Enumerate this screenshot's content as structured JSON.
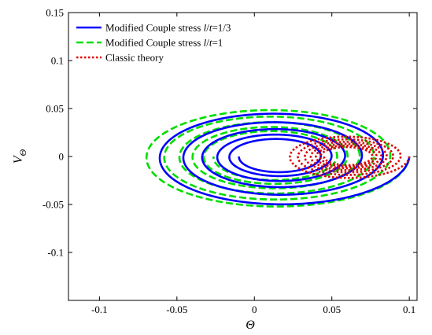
{
  "chart_data": {
    "type": "line",
    "xlabel": "Θ",
    "ylabel_main": "V",
    "ylabel_sub": "Θ",
    "xlim": [
      -0.12,
      0.105
    ],
    "ylim": [
      -0.15,
      0.15
    ],
    "xticks": [
      -0.1,
      -0.05,
      0,
      0.05,
      0.1
    ],
    "xtick_labels": [
      "-0.1",
      "-0.05",
      "0",
      "0.05",
      "0.1"
    ],
    "yticks": [
      -0.1,
      -0.05,
      0,
      0.05,
      0.1,
      0.15
    ],
    "ytick_labels": [
      "-0.1",
      "-0.05",
      "0",
      "0.05",
      "0.1",
      "0.15"
    ],
    "grid": false,
    "legend_position": "top-left",
    "series": [
      {
        "name": "Modified Couple stress l/t=1/3",
        "legend_parts": [
          {
            "text": "Modified Couple stress ",
            "italic": false
          },
          {
            "text": "l",
            "italic": true
          },
          {
            "text": "/",
            "italic": false
          },
          {
            "text": "t",
            "italic": true
          },
          {
            "text": "=1/3",
            "italic": false
          }
        ],
        "color": "#0000ff",
        "style": "solid",
        "spiral": {
          "x0": 0.1,
          "center_x": 0.015,
          "center_y": 0.0,
          "y_scale": 0.62,
          "turns": 5.5,
          "decay": 0.8
        }
      },
      {
        "name": "Modified Couple stress l/t=1",
        "legend_parts": [
          {
            "text": "Modified Couple stress ",
            "italic": false
          },
          {
            "text": "l",
            "italic": true
          },
          {
            "text": "/",
            "italic": false
          },
          {
            "text": "t",
            "italic": true
          },
          {
            "text": "=1",
            "italic": false
          }
        ],
        "color": "#00dd00",
        "style": "dashed",
        "spiral": {
          "x0": 0.1,
          "center_x": 0.012,
          "center_y": 0.0,
          "y_scale": 0.615,
          "turns": 5.5,
          "decay": 0.86
        }
      },
      {
        "name": "Classic theory",
        "legend_parts": [
          {
            "text": "Classic theory",
            "italic": false
          }
        ],
        "color": "#dd0000",
        "style": "dotted",
        "spiral": {
          "x0": 0.1,
          "center_x": 0.06,
          "center_y": 0.0,
          "y_scale": 0.58,
          "turns": 6.5,
          "decay": 0.86
        }
      }
    ]
  }
}
